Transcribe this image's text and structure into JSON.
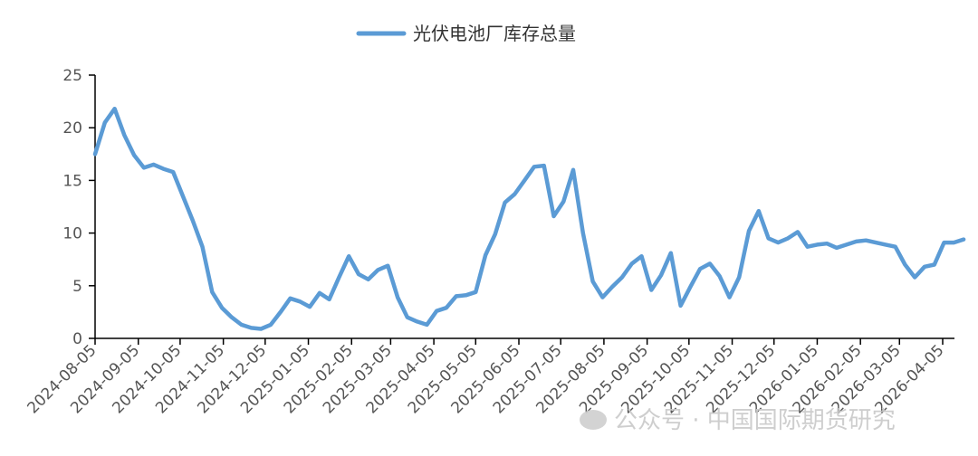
{
  "chart_data": {
    "type": "line",
    "title": "",
    "xlabel": "",
    "ylabel": "",
    "ylim": [
      0,
      25
    ],
    "yticks": [
      0,
      5,
      10,
      15,
      20,
      25
    ],
    "xtick_labels": [
      "2024-08-05",
      "2024-09-05",
      "2024-10-05",
      "2024-11-05",
      "2024-12-05",
      "2025-01-05",
      "2025-02-05",
      "2025-03-05",
      "2025-04-05",
      "2025-05-05",
      "2025-06-05",
      "2025-07-05",
      "2025-08-05",
      "2025-09-05",
      "2025-10-05",
      "2025-11-05",
      "2025-12-05",
      "2026-01-05",
      "2026-02-05",
      "2026-03-05",
      "2026-04-05"
    ],
    "grid": false,
    "legend_position": "top-center",
    "color": "#5B9BD5",
    "series": [
      {
        "name": "光伏电池厂库存总量",
        "x": [
          "2024-08-05",
          "2024-08-12",
          "2024-08-19",
          "2024-08-26",
          "2024-09-02",
          "2024-09-09",
          "2024-09-16",
          "2024-09-23",
          "2024-09-30",
          "2024-10-07",
          "2024-10-14",
          "2024-10-21",
          "2024-10-28",
          "2024-11-04",
          "2024-11-11",
          "2024-11-18",
          "2024-11-25",
          "2024-12-02",
          "2024-12-09",
          "2024-12-16",
          "2024-12-23",
          "2024-12-30",
          "2025-01-06",
          "2025-01-13",
          "2025-01-20",
          "2025-01-27",
          "2025-02-03",
          "2025-02-10",
          "2025-02-17",
          "2025-02-24",
          "2025-03-03",
          "2025-03-10",
          "2025-03-17",
          "2025-03-24",
          "2025-03-31",
          "2025-04-07",
          "2025-04-14",
          "2025-04-21",
          "2025-04-28",
          "2025-05-05",
          "2025-05-12",
          "2025-05-19",
          "2025-05-26",
          "2025-06-02",
          "2025-06-09",
          "2025-06-16",
          "2025-06-23",
          "2025-06-30",
          "2025-07-07",
          "2025-07-14",
          "2025-07-21",
          "2025-07-28",
          "2025-08-04",
          "2025-08-11",
          "2025-08-18",
          "2025-08-25",
          "2025-09-01",
          "2025-09-08",
          "2025-09-15",
          "2025-09-22",
          "2025-09-29",
          "2025-10-06",
          "2025-10-13",
          "2025-10-20",
          "2025-10-27",
          "2025-11-03",
          "2025-11-10",
          "2025-11-17",
          "2025-11-24",
          "2025-12-01",
          "2025-12-08",
          "2025-12-15",
          "2025-12-22",
          "2025-12-29",
          "2026-01-05",
          "2026-01-12",
          "2026-01-19",
          "2026-01-26",
          "2026-02-02",
          "2026-02-09",
          "2026-02-16",
          "2026-02-23",
          "2026-03-02",
          "2026-03-09",
          "2026-03-16",
          "2026-03-23",
          "2026-03-30",
          "2026-04-06",
          "2026-04-13",
          "2026-04-20"
        ],
        "values": [
          17.5,
          20.5,
          21.8,
          19.3,
          17.4,
          16.2,
          16.5,
          16.1,
          15.8,
          13.5,
          11.2,
          8.7,
          4.4,
          2.9,
          2.0,
          1.3,
          1.0,
          0.9,
          1.3,
          2.5,
          3.8,
          3.5,
          3.0,
          4.3,
          3.7,
          5.8,
          7.8,
          6.1,
          5.6,
          6.5,
          6.9,
          3.9,
          2.0,
          1.6,
          1.3,
          2.6,
          2.9,
          4.0,
          4.1,
          4.4,
          7.9,
          9.9,
          12.9,
          13.7,
          15.0,
          16.3,
          16.4,
          11.6,
          13.0,
          16.0,
          10.0,
          5.4,
          3.9,
          4.9,
          5.8,
          7.1,
          7.8,
          4.6,
          6.0,
          8.1,
          3.1,
          4.9,
          6.6,
          7.1,
          5.9,
          3.9,
          5.8,
          10.2,
          12.1,
          9.5,
          9.1,
          9.5,
          10.1,
          8.7,
          8.9,
          9.0,
          8.6,
          8.9,
          9.2,
          9.3,
          9.1,
          8.9,
          8.7,
          7.0,
          5.8,
          6.8,
          7.0,
          9.1,
          9.1,
          9.4
        ]
      }
    ]
  },
  "watermark": {
    "text": "公众号 · 中国国际期货研究"
  }
}
